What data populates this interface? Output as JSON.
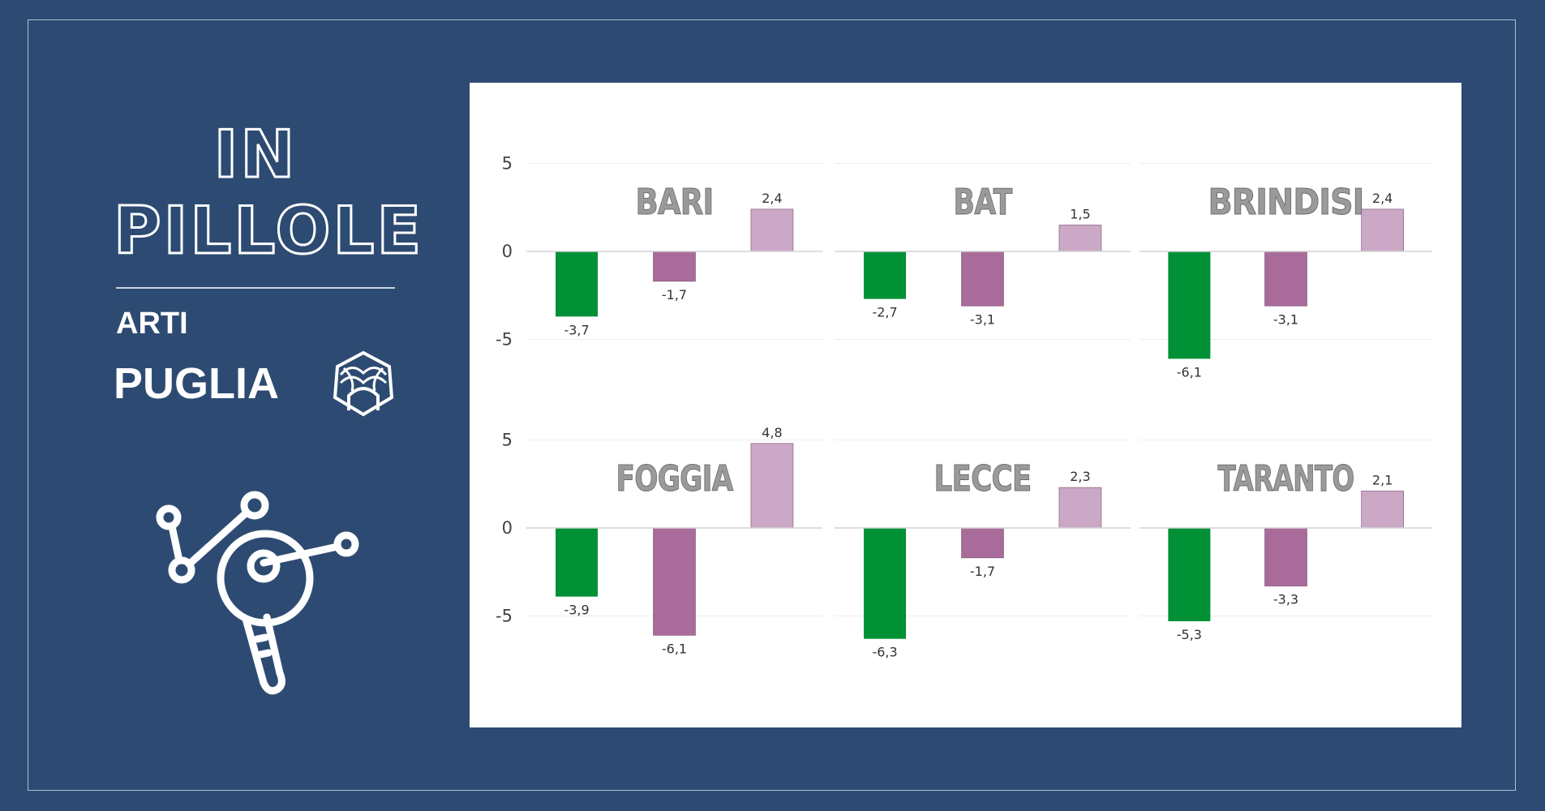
{
  "header": {
    "title_line1": "IN",
    "title_line2": "PILLOLE",
    "org_label": "ARTI",
    "region_label": "PUGLIA"
  },
  "icons": [
    "arti-logo-icon",
    "key-molecule-icon"
  ],
  "colors": {
    "background": "#2d4b72",
    "series_1": "#009036",
    "series_2": "#a96c9a",
    "series_3": "#cba8c6",
    "province_label": "#9a9a9a"
  },
  "chart_data": {
    "type": "bar",
    "y_ticks": [
      "5",
      "0",
      "-5"
    ],
    "ylim": [
      -5,
      5
    ],
    "grid": true,
    "panels": [
      {
        "name": "BARI",
        "values": [
          -3.7,
          -1.7,
          2.4
        ],
        "labels": [
          "-3,7",
          "-1,7",
          "2,4"
        ]
      },
      {
        "name": "BAT",
        "values": [
          -2.7,
          -3.1,
          1.5
        ],
        "labels": [
          "-2,7",
          "-3,1",
          "1,5"
        ]
      },
      {
        "name": "BRINDISI",
        "values": [
          -6.1,
          -3.1,
          2.4
        ],
        "labels": [
          "-6,1",
          "-3,1",
          "2,4"
        ]
      },
      {
        "name": "FOGGIA",
        "values": [
          -3.9,
          -6.1,
          4.8
        ],
        "labels": [
          "-3,9",
          "-6,1",
          "4,8"
        ]
      },
      {
        "name": "LECCE",
        "values": [
          -6.3,
          -1.7,
          2.3
        ],
        "labels": [
          "-6,3",
          "-1,7",
          "2,3"
        ]
      },
      {
        "name": "TARANTO",
        "values": [
          -5.3,
          -3.3,
          2.1
        ],
        "labels": [
          "-5,3",
          "-3,3",
          "2,1"
        ]
      }
    ]
  }
}
